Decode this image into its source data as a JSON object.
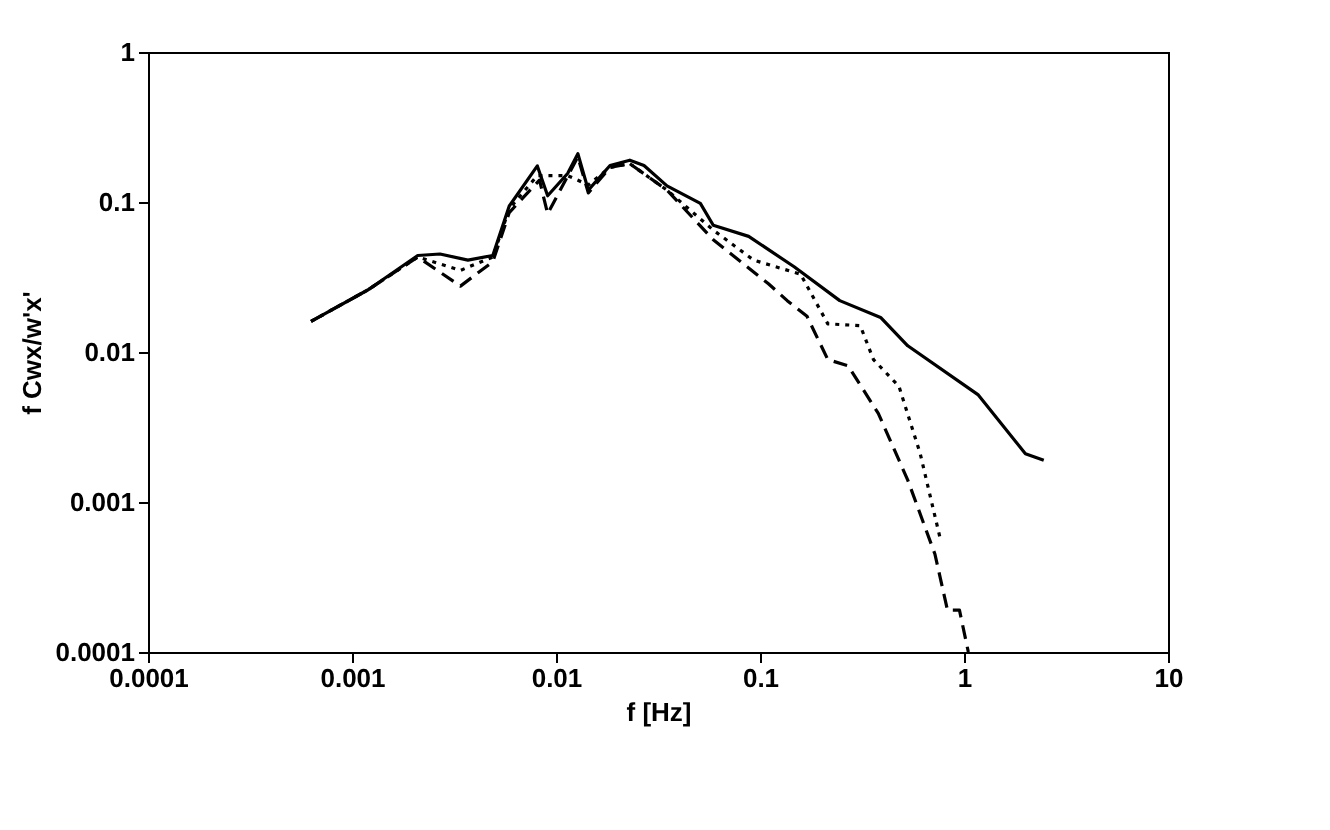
{
  "chart_data": {
    "type": "line",
    "xlabel": "f [Hz]",
    "ylabel": "f Cwx/w'x'",
    "log": "xy",
    "grid": false,
    "marker": "none",
    "xlim": [
      0.0001,
      10
    ],
    "xticks": [
      0.0001,
      0.001,
      0.01,
      0.1,
      1,
      10
    ],
    "ylim": [
      0.0001,
      1
    ],
    "yticks": [
      0.0001,
      0.001,
      0.01,
      0.1,
      1
    ],
    "series": [
      {
        "color": "#000000",
        "line_style": "solid",
        "x": [
          0.00063,
          0.0012,
          0.0021,
          0.0027,
          0.0037,
          0.0049,
          0.0059,
          0.0081,
          0.0091,
          0.0114,
          0.0128,
          0.0144,
          0.0184,
          0.023,
          0.027,
          0.035,
          0.051,
          0.059,
          0.088,
          0.147,
          0.246,
          0.39,
          0.53,
          1.17,
          2.0,
          2.46
        ],
        "values": [
          0.016,
          0.026,
          0.044,
          0.045,
          0.041,
          0.044,
          0.094,
          0.174,
          0.11,
          0.155,
          0.21,
          0.12,
          0.175,
          0.19,
          0.175,
          0.128,
          0.098,
          0.07,
          0.059,
          0.037,
          0.022,
          0.017,
          0.011,
          0.0052,
          0.0021,
          0.0019
        ]
      },
      {
        "color": "#000000",
        "line_style": "dotted",
        "x": [
          0.00063,
          0.0012,
          0.0021,
          0.0034,
          0.0049,
          0.0059,
          0.0081,
          0.0114,
          0.0144,
          0.0184,
          0.023,
          0.035,
          0.059,
          0.093,
          0.158,
          0.215,
          0.31,
          0.36,
          0.48,
          0.61,
          0.76
        ],
        "values": [
          0.016,
          0.026,
          0.043,
          0.035,
          0.043,
          0.09,
          0.15,
          0.15,
          0.13,
          0.17,
          0.18,
          0.12,
          0.065,
          0.041,
          0.033,
          0.0154,
          0.015,
          0.0089,
          0.0059,
          0.0021,
          0.00059
        ]
      },
      {
        "color": "#000000",
        "line_style": "dashed",
        "x": [
          0.00063,
          0.0012,
          0.0021,
          0.0034,
          0.0049,
          0.0059,
          0.0083,
          0.0091,
          0.0128,
          0.0144,
          0.0184,
          0.023,
          0.035,
          0.059,
          0.11,
          0.136,
          0.17,
          0.215,
          0.27,
          0.38,
          0.53,
          0.72,
          0.83,
          0.95,
          1.05
        ],
        "values": [
          0.016,
          0.026,
          0.043,
          0.0275,
          0.04,
          0.085,
          0.14,
          0.0835,
          0.2,
          0.115,
          0.17,
          0.18,
          0.12,
          0.056,
          0.0285,
          0.022,
          0.0173,
          0.0089,
          0.0081,
          0.0039,
          0.0014,
          0.00045,
          0.00019,
          0.00019,
          0.0001
        ]
      }
    ]
  }
}
